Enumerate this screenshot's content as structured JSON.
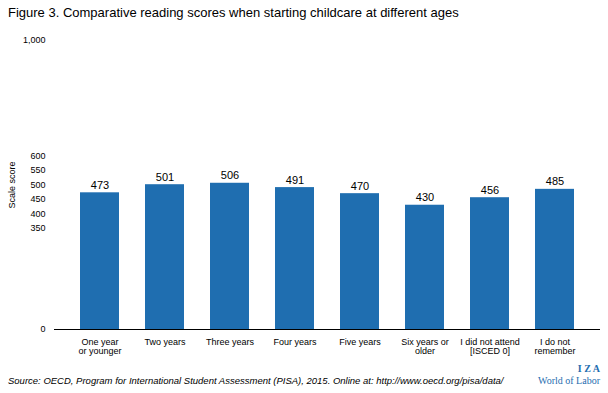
{
  "chart_data": {
    "type": "bar",
    "title": "Figure 3. Comparative reading scores when starting childcare at different ages",
    "categories": [
      "One year\nor younger",
      "Two years",
      "Three years",
      "Four years",
      "Five years",
      "Six years or\nolder",
      "I did not attend\n[ISCED 0]",
      "I do not\nremember"
    ],
    "values": [
      473,
      501,
      506,
      491,
      470,
      430,
      456,
      485
    ],
    "color": "#1F6EB0",
    "ylabel": "Scale score",
    "ylim": [
      0,
      1000
    ],
    "yticks": [
      0,
      350,
      400,
      450,
      500,
      550,
      600,
      {
        "value": 1000,
        "label": "1,000"
      }
    ],
    "data_labels": true,
    "grid": false,
    "annotations": [
      "Source: OECD, Program for International Student Assessment (PISA), 2015. Online at: http://www.oecd.org/pisa/data/",
      "I Z A",
      "World of Labor"
    ]
  }
}
